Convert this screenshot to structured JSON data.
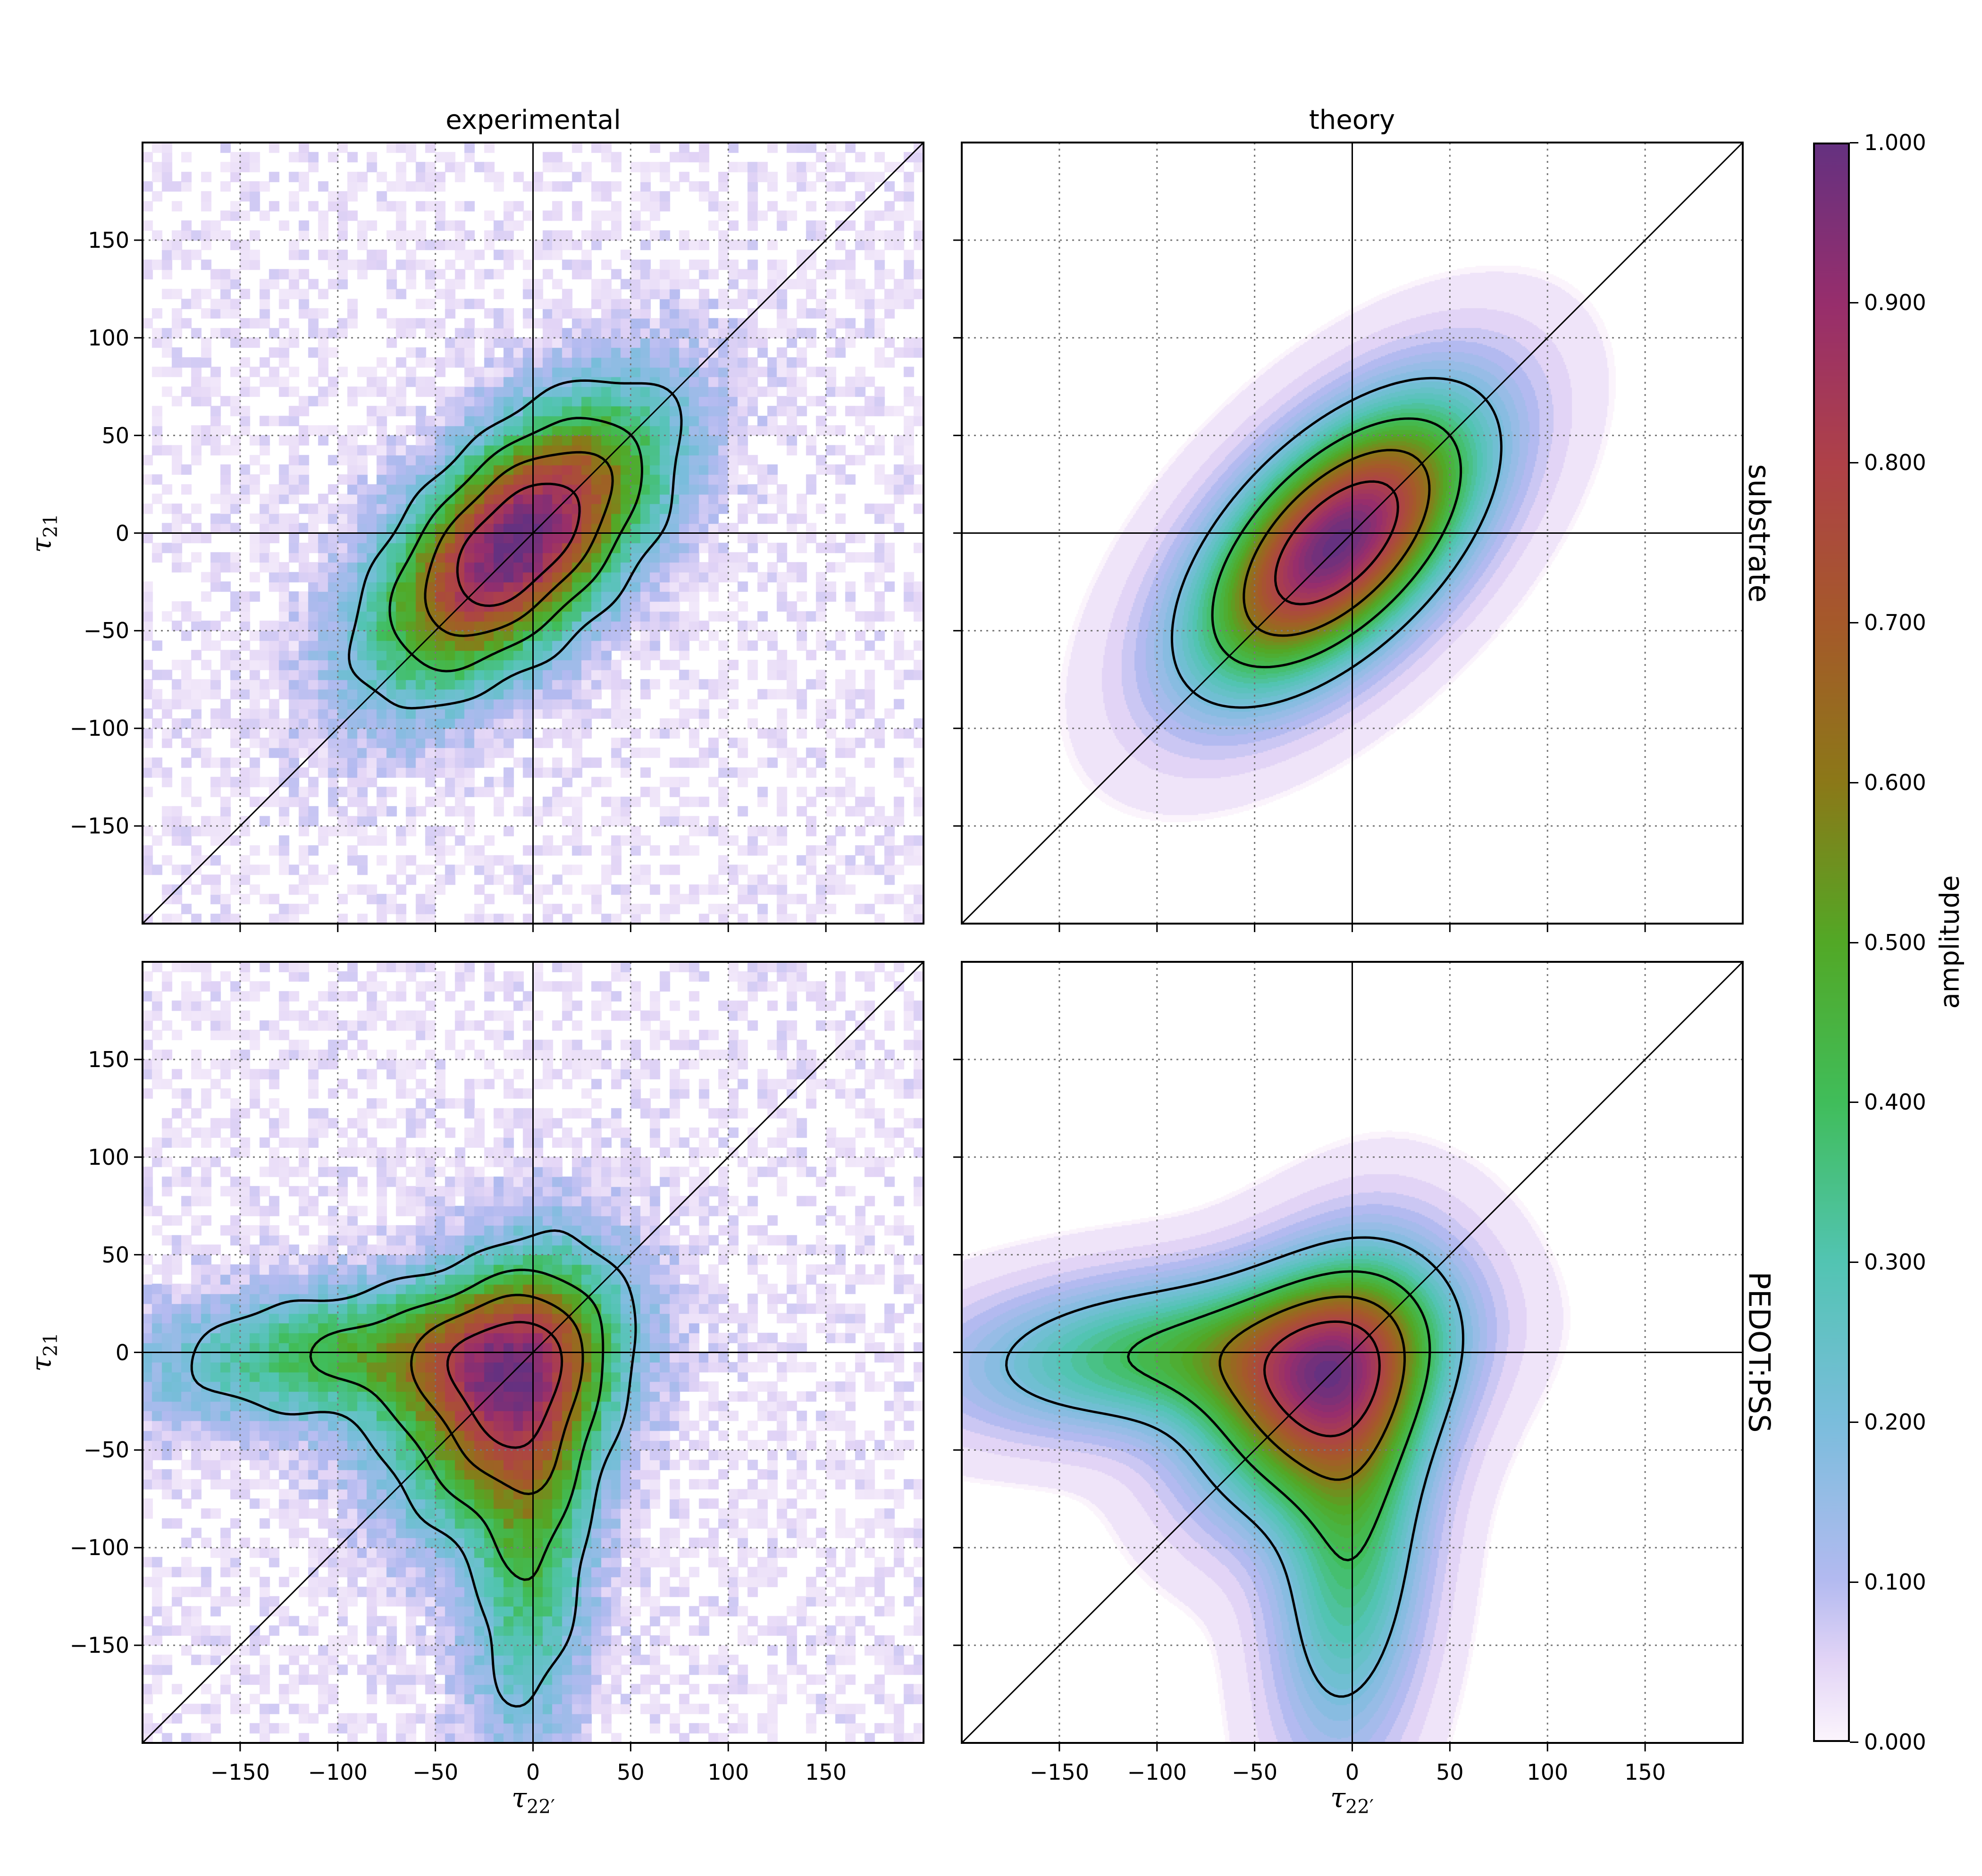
{
  "colorbar": {
    "label": "amplitude",
    "range": [
      0,
      1
    ],
    "ticks": [
      "0.000",
      "0.100",
      "0.200",
      "0.300",
      "0.400",
      "0.500",
      "0.600",
      "0.700",
      "0.800",
      "0.900",
      "1.000"
    ],
    "colormap": [
      [
        0.0,
        "#fbf4fc"
      ],
      [
        0.05,
        "#e2d4f6"
      ],
      [
        0.1,
        "#b3baf0"
      ],
      [
        0.2,
        "#7abddc"
      ],
      [
        0.3,
        "#52c4b2"
      ],
      [
        0.4,
        "#40bd5a"
      ],
      [
        0.5,
        "#52a826"
      ],
      [
        0.6,
        "#8b7818"
      ],
      [
        0.7,
        "#a5592a"
      ],
      [
        0.8,
        "#ae4148"
      ],
      [
        0.9,
        "#972e6c"
      ],
      [
        1.0,
        "#653180"
      ]
    ]
  },
  "columns": [
    "experimental",
    "theory"
  ],
  "rows": [
    "substrate",
    "PEDOT:PSS"
  ],
  "axis_labels": {
    "x": "τ",
    "x_sub": "22′",
    "y": "τ",
    "y_sub": "21"
  },
  "chart_data": [
    {
      "type": "heatmap",
      "row": "substrate",
      "column": "experimental",
      "xlim": [
        -200,
        200
      ],
      "ylim": [
        -200,
        200
      ],
      "xticks": [
        -150,
        -100,
        -50,
        0,
        50,
        100,
        150
      ],
      "yticks": [
        -150,
        -100,
        -50,
        0,
        50,
        100,
        150
      ],
      "grid": true,
      "contour_levels": [
        0.2,
        0.4,
        0.6,
        0.8
      ],
      "peak": [
        -5,
        5
      ],
      "components": [
        {
          "weight": 1,
          "center": [
            -8,
            -5
          ],
          "sigma": [
            47,
            47
          ],
          "rho": 0.58
        }
      ],
      "noisy": true
    },
    {
      "type": "heatmap",
      "row": "substrate",
      "column": "theory",
      "xlim": [
        -200,
        200
      ],
      "ylim": [
        -200,
        200
      ],
      "xticks": [
        -150,
        -100,
        -50,
        0,
        50,
        100,
        150
      ],
      "yticks": [
        -150,
        -100,
        -50,
        0,
        50,
        100,
        150
      ],
      "grid": true,
      "contour_levels": [
        0.2,
        0.4,
        0.6,
        0.8
      ],
      "peak": [
        -8,
        -5
      ],
      "components": [
        {
          "weight": 1,
          "center": [
            -8,
            -5
          ],
          "sigma": [
            47,
            47
          ],
          "rho": 0.58
        }
      ],
      "noisy": false
    },
    {
      "type": "heatmap",
      "row": "PEDOT:PSS",
      "column": "experimental",
      "xlim": [
        -200,
        200
      ],
      "ylim": [
        -200,
        200
      ],
      "xticks": [
        -150,
        -100,
        -50,
        0,
        50,
        100,
        150
      ],
      "yticks": [
        -150,
        -100,
        -50,
        0,
        50,
        100,
        150
      ],
      "grid": true,
      "contour_levels": [
        0.2,
        0.4,
        0.6,
        0.8
      ],
      "peak": [
        -15,
        -20
      ],
      "components": [
        {
          "weight": 1,
          "center": [
            -15,
            -18
          ],
          "sigma": [
            38,
            45
          ],
          "rho": 0.3
        },
        {
          "weight": 0.55,
          "center": [
            -95,
            0
          ],
          "sigma": [
            70,
            24
          ],
          "rho": 0.2
        },
        {
          "weight": 0.5,
          "center": [
            0,
            -100
          ],
          "sigma": [
            22,
            70
          ],
          "rho": 0.2
        }
      ],
      "noisy": true
    },
    {
      "type": "heatmap",
      "row": "PEDOT:PSS",
      "column": "theory",
      "xlim": [
        -200,
        200
      ],
      "ylim": [
        -200,
        200
      ],
      "xticks": [
        -150,
        -100,
        -50,
        0,
        50,
        100,
        150
      ],
      "yticks": [
        -150,
        -100,
        -50,
        0,
        50,
        100,
        150
      ],
      "grid": true,
      "contour_levels": [
        0.2,
        0.4,
        0.6,
        0.8
      ],
      "peak": [
        -15,
        -15
      ],
      "components": [
        {
          "weight": 1,
          "center": [
            -15,
            -15
          ],
          "sigma": [
            40,
            42
          ],
          "rho": 0.3
        },
        {
          "weight": 0.55,
          "center": [
            -95,
            0
          ],
          "sigma": [
            70,
            26
          ],
          "rho": 0.2
        },
        {
          "weight": 0.5,
          "center": [
            0,
            -100
          ],
          "sigma": [
            26,
            70
          ],
          "rho": 0.2
        }
      ],
      "noisy": false
    }
  ]
}
